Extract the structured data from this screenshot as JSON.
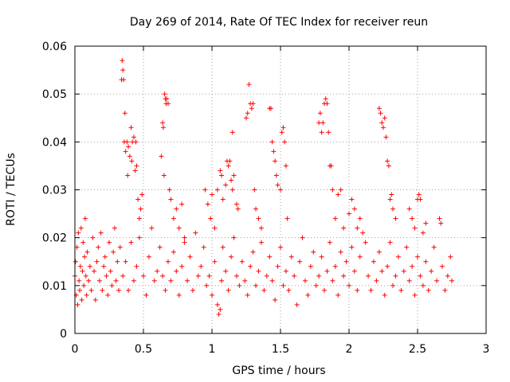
{
  "chart_data": {
    "type": "scatter",
    "title": "Day 269 of 2014, Rate Of TEC Index for receiver reun",
    "xlabel": "GPS time / hours",
    "ylabel": "ROTI / TECUs",
    "xlim": [
      0,
      3
    ],
    "ylim": [
      0,
      0.06
    ],
    "x_ticks": [
      0,
      0.5,
      1,
      1.5,
      2,
      2.5,
      3
    ],
    "x_tick_labels": [
      "0",
      "0.5",
      "1",
      "1.5",
      "2",
      "2.5",
      "3"
    ],
    "y_ticks": [
      0,
      0.01,
      0.02,
      0.03,
      0.04,
      0.05,
      0.06
    ],
    "y_tick_labels": [
      "0",
      "0.01",
      "0.02",
      "0.03",
      "0.04",
      "0.05",
      "0.06"
    ],
    "grid": true,
    "marker": "plus",
    "color": "#ff0000",
    "series": [
      {
        "name": "ROTI",
        "points": [
          [
            0.0,
            0.012
          ],
          [
            0.005,
            0.015
          ],
          [
            0.01,
            0.008
          ],
          [
            0.015,
            0.018
          ],
          [
            0.02,
            0.006
          ],
          [
            0.025,
            0.021
          ],
          [
            0.03,
            0.011
          ],
          [
            0.035,
            0.009
          ],
          [
            0.04,
            0.014
          ],
          [
            0.045,
            0.022
          ],
          [
            0.05,
            0.007
          ],
          [
            0.055,
            0.013
          ],
          [
            0.06,
            0.019
          ],
          [
            0.065,
            0.01
          ],
          [
            0.07,
            0.016
          ],
          [
            0.075,
            0.024
          ],
          [
            0.08,
            0.012
          ],
          [
            0.085,
            0.008
          ],
          [
            0.09,
            0.017
          ],
          [
            0.1,
            0.011
          ],
          [
            0.11,
            0.014
          ],
          [
            0.12,
            0.009
          ],
          [
            0.13,
            0.02
          ],
          [
            0.14,
            0.013
          ],
          [
            0.15,
            0.007
          ],
          [
            0.16,
            0.015
          ],
          [
            0.17,
            0.018
          ],
          [
            0.18,
            0.011
          ],
          [
            0.19,
            0.021
          ],
          [
            0.2,
            0.009
          ],
          [
            0.21,
            0.014
          ],
          [
            0.22,
            0.016
          ],
          [
            0.23,
            0.012
          ],
          [
            0.24,
            0.008
          ],
          [
            0.25,
            0.019
          ],
          [
            0.26,
            0.013
          ],
          [
            0.27,
            0.01
          ],
          [
            0.28,
            0.017
          ],
          [
            0.29,
            0.022
          ],
          [
            0.3,
            0.011
          ],
          [
            0.31,
            0.015
          ],
          [
            0.32,
            0.009
          ],
          [
            0.33,
            0.018
          ],
          [
            0.34,
            0.053
          ],
          [
            0.345,
            0.057
          ],
          [
            0.35,
            0.055
          ],
          [
            0.355,
            0.053
          ],
          [
            0.36,
            0.04
          ],
          [
            0.365,
            0.046
          ],
          [
            0.37,
            0.038
          ],
          [
            0.38,
            0.04
          ],
          [
            0.385,
            0.033
          ],
          [
            0.39,
            0.039
          ],
          [
            0.4,
            0.037
          ],
          [
            0.41,
            0.043
          ],
          [
            0.415,
            0.036
          ],
          [
            0.42,
            0.04
          ],
          [
            0.43,
            0.041
          ],
          [
            0.44,
            0.034
          ],
          [
            0.445,
            0.04
          ],
          [
            0.45,
            0.035
          ],
          [
            0.46,
            0.028
          ],
          [
            0.47,
            0.024
          ],
          [
            0.48,
            0.026
          ],
          [
            0.49,
            0.029
          ],
          [
            0.35,
            0.012
          ],
          [
            0.37,
            0.015
          ],
          [
            0.39,
            0.009
          ],
          [
            0.41,
            0.019
          ],
          [
            0.43,
            0.011
          ],
          [
            0.45,
            0.014
          ],
          [
            0.47,
            0.02
          ],
          [
            0.5,
            0.012
          ],
          [
            0.52,
            0.008
          ],
          [
            0.54,
            0.016
          ],
          [
            0.56,
            0.022
          ],
          [
            0.58,
            0.011
          ],
          [
            0.6,
            0.013
          ],
          [
            0.62,
            0.018
          ],
          [
            0.63,
            0.037
          ],
          [
            0.64,
            0.044
          ],
          [
            0.645,
            0.043
          ],
          [
            0.65,
            0.033
          ],
          [
            0.655,
            0.05
          ],
          [
            0.66,
            0.049
          ],
          [
            0.665,
            0.048
          ],
          [
            0.67,
            0.049
          ],
          [
            0.68,
            0.048
          ],
          [
            0.69,
            0.03
          ],
          [
            0.7,
            0.028
          ],
          [
            0.72,
            0.024
          ],
          [
            0.74,
            0.026
          ],
          [
            0.76,
            0.022
          ],
          [
            0.78,
            0.027
          ],
          [
            0.8,
            0.02
          ],
          [
            0.64,
            0.012
          ],
          [
            0.66,
            0.009
          ],
          [
            0.68,
            0.015
          ],
          [
            0.7,
            0.011
          ],
          [
            0.72,
            0.017
          ],
          [
            0.74,
            0.013
          ],
          [
            0.76,
            0.008
          ],
          [
            0.78,
            0.014
          ],
          [
            0.8,
            0.019
          ],
          [
            0.82,
            0.011
          ],
          [
            0.84,
            0.016
          ],
          [
            0.86,
            0.009
          ],
          [
            0.88,
            0.021
          ],
          [
            0.9,
            0.012
          ],
          [
            0.92,
            0.014
          ],
          [
            0.94,
            0.018
          ],
          [
            0.96,
            0.01
          ],
          [
            0.95,
            0.03
          ],
          [
            0.97,
            0.027
          ],
          [
            0.99,
            0.024
          ],
          [
            1.0,
            0.029
          ],
          [
            1.02,
            0.022
          ],
          [
            1.04,
            0.03
          ],
          [
            1.06,
            0.034
          ],
          [
            1.07,
            0.033
          ],
          [
            1.08,
            0.028
          ],
          [
            1.1,
            0.031
          ],
          [
            1.11,
            0.036
          ],
          [
            1.12,
            0.035
          ],
          [
            1.13,
            0.036
          ],
          [
            1.14,
            0.032
          ],
          [
            1.15,
            0.03
          ],
          [
            1.16,
            0.033
          ],
          [
            1.18,
            0.027
          ],
          [
            1.19,
            0.026
          ],
          [
            0.98,
            0.012
          ],
          [
            1.0,
            0.008
          ],
          [
            1.02,
            0.015
          ],
          [
            1.04,
            0.006
          ],
          [
            1.05,
            0.004
          ],
          [
            1.06,
            0.005
          ],
          [
            1.07,
            0.011
          ],
          [
            1.08,
            0.018
          ],
          [
            1.1,
            0.013
          ],
          [
            1.12,
            0.009
          ],
          [
            1.14,
            0.016
          ],
          [
            1.16,
            0.02
          ],
          [
            1.18,
            0.012
          ],
          [
            1.2,
            0.01
          ],
          [
            1.22,
            0.015
          ],
          [
            1.15,
            0.042
          ],
          [
            1.25,
            0.045
          ],
          [
            1.26,
            0.046
          ],
          [
            1.27,
            0.052
          ],
          [
            1.28,
            0.048
          ],
          [
            1.29,
            0.047
          ],
          [
            1.3,
            0.048
          ],
          [
            1.31,
            0.03
          ],
          [
            1.32,
            0.026
          ],
          [
            1.34,
            0.024
          ],
          [
            1.36,
            0.022
          ],
          [
            1.24,
            0.011
          ],
          [
            1.26,
            0.008
          ],
          [
            1.28,
            0.014
          ],
          [
            1.3,
            0.017
          ],
          [
            1.32,
            0.01
          ],
          [
            1.34,
            0.013
          ],
          [
            1.36,
            0.019
          ],
          [
            1.38,
            0.009
          ],
          [
            1.4,
            0.012
          ],
          [
            1.42,
            0.016
          ],
          [
            1.42,
            0.047
          ],
          [
            1.43,
            0.047
          ],
          [
            1.44,
            0.04
          ],
          [
            1.45,
            0.038
          ],
          [
            1.46,
            0.036
          ],
          [
            1.47,
            0.033
          ],
          [
            1.48,
            0.031
          ],
          [
            1.5,
            0.03
          ],
          [
            1.51,
            0.042
          ],
          [
            1.52,
            0.043
          ],
          [
            1.53,
            0.04
          ],
          [
            1.54,
            0.035
          ],
          [
            1.55,
            0.024
          ],
          [
            1.44,
            0.011
          ],
          [
            1.46,
            0.007
          ],
          [
            1.48,
            0.014
          ],
          [
            1.5,
            0.018
          ],
          [
            1.52,
            0.01
          ],
          [
            1.54,
            0.013
          ],
          [
            1.56,
            0.009
          ],
          [
            1.58,
            0.016
          ],
          [
            1.6,
            0.012
          ],
          [
            1.62,
            0.006
          ],
          [
            1.64,
            0.015
          ],
          [
            1.66,
            0.02
          ],
          [
            1.68,
            0.011
          ],
          [
            1.7,
            0.008
          ],
          [
            1.72,
            0.014
          ],
          [
            1.74,
            0.017
          ],
          [
            1.76,
            0.01
          ],
          [
            1.78,
            0.044
          ],
          [
            1.79,
            0.046
          ],
          [
            1.8,
            0.042
          ],
          [
            1.81,
            0.044
          ],
          [
            1.82,
            0.048
          ],
          [
            1.83,
            0.049
          ],
          [
            1.84,
            0.048
          ],
          [
            1.85,
            0.042
          ],
          [
            1.86,
            0.035
          ],
          [
            1.87,
            0.035
          ],
          [
            1.88,
            0.03
          ],
          [
            1.9,
            0.024
          ],
          [
            1.92,
            0.029
          ],
          [
            1.94,
            0.03
          ],
          [
            1.96,
            0.022
          ],
          [
            1.78,
            0.012
          ],
          [
            1.8,
            0.016
          ],
          [
            1.82,
            0.009
          ],
          [
            1.84,
            0.013
          ],
          [
            1.86,
            0.019
          ],
          [
            1.88,
            0.011
          ],
          [
            1.9,
            0.014
          ],
          [
            1.92,
            0.008
          ],
          [
            1.94,
            0.017
          ],
          [
            1.96,
            0.012
          ],
          [
            1.98,
            0.015
          ],
          [
            2.0,
            0.01
          ],
          [
            2.02,
            0.018
          ],
          [
            2.04,
            0.013
          ],
          [
            2.06,
            0.009
          ],
          [
            2.08,
            0.016
          ],
          [
            2.0,
            0.025
          ],
          [
            2.02,
            0.028
          ],
          [
            2.04,
            0.026
          ],
          [
            2.06,
            0.022
          ],
          [
            2.08,
            0.024
          ],
          [
            2.1,
            0.021
          ],
          [
            2.12,
            0.019
          ],
          [
            2.22,
            0.047
          ],
          [
            2.23,
            0.046
          ],
          [
            2.24,
            0.044
          ],
          [
            2.25,
            0.043
          ],
          [
            2.26,
            0.045
          ],
          [
            2.27,
            0.041
          ],
          [
            2.28,
            0.036
          ],
          [
            2.29,
            0.035
          ],
          [
            2.3,
            0.028
          ],
          [
            2.31,
            0.029
          ],
          [
            2.32,
            0.026
          ],
          [
            2.34,
            0.024
          ],
          [
            2.14,
            0.012
          ],
          [
            2.16,
            0.009
          ],
          [
            2.18,
            0.015
          ],
          [
            2.2,
            0.011
          ],
          [
            2.22,
            0.017
          ],
          [
            2.24,
            0.013
          ],
          [
            2.26,
            0.008
          ],
          [
            2.28,
            0.014
          ],
          [
            2.3,
            0.019
          ],
          [
            2.32,
            0.01
          ],
          [
            2.34,
            0.012
          ],
          [
            2.36,
            0.016
          ],
          [
            2.38,
            0.009
          ],
          [
            2.4,
            0.013
          ],
          [
            2.42,
            0.018
          ],
          [
            2.44,
            0.026
          ],
          [
            2.46,
            0.024
          ],
          [
            2.48,
            0.022
          ],
          [
            2.5,
            0.028
          ],
          [
            2.51,
            0.029
          ],
          [
            2.52,
            0.028
          ],
          [
            2.54,
            0.021
          ],
          [
            2.56,
            0.023
          ],
          [
            2.44,
            0.011
          ],
          [
            2.46,
            0.014
          ],
          [
            2.48,
            0.008
          ],
          [
            2.5,
            0.016
          ],
          [
            2.52,
            0.012
          ],
          [
            2.54,
            0.01
          ],
          [
            2.56,
            0.015
          ],
          [
            2.58,
            0.009
          ],
          [
            2.6,
            0.013
          ],
          [
            2.62,
            0.018
          ],
          [
            2.64,
            0.011
          ],
          [
            2.66,
            0.024
          ],
          [
            2.67,
            0.023
          ],
          [
            2.68,
            0.014
          ],
          [
            2.7,
            0.009
          ],
          [
            2.72,
            0.012
          ],
          [
            2.74,
            0.016
          ],
          [
            2.75,
            0.011
          ]
        ]
      }
    ]
  }
}
